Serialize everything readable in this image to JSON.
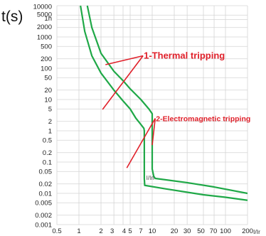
{
  "chart_data": {
    "type": "line",
    "ylabel": "t(s)",
    "xlabel": "I/Ir",
    "x_scale": "log",
    "y_scale": "log",
    "xlim": [
      0.5,
      200
    ],
    "ylim": [
      0.001,
      10000
    ],
    "grid": true,
    "x_tick_labels": [
      "0.5",
      "1",
      "2",
      "3",
      "4",
      "5",
      "7",
      "10",
      "20",
      "30",
      "50",
      "70",
      "100",
      "200"
    ],
    "y_tick_labels": [
      "10000",
      "5000",
      "1h",
      "2000",
      "1000",
      "500",
      "200",
      "100",
      "50",
      "20",
      "10",
      "5",
      "2",
      "1",
      "0.5",
      "0.2",
      "0.1",
      "0.05",
      "0.02",
      "0.01",
      "0.005",
      "0.002",
      "0.001"
    ],
    "curve_label": "I/In",
    "line_color": "#1fa847",
    "annotation_color": "#e0202a",
    "annotations": [
      {
        "text": "1-Thermal tripping",
        "anchor": [
          7.5,
          250
        ],
        "targets": [
          [
            2.3,
            130
          ],
          [
            2.1,
            4.8
          ]
        ]
      },
      {
        "text": "2-Electromagnetic tripping",
        "anchor": [
          11,
          2.5
        ],
        "targets": [
          [
            10,
            0.35
          ],
          [
            4.5,
            0.065
          ]
        ]
      }
    ],
    "series": [
      {
        "points": [
          [
            1.05,
            10000
          ],
          [
            1.2,
            1500
          ],
          [
            1.5,
            250
          ],
          [
            2,
            70
          ],
          [
            3,
            20
          ],
          [
            4,
            9
          ],
          [
            5,
            5
          ],
          [
            6,
            2.5
          ],
          [
            7,
            1.6
          ],
          [
            7.7,
            1.2
          ],
          [
            7.8,
            1
          ],
          [
            7.8,
            0.03
          ],
          [
            7.9,
            0.018
          ],
          [
            15,
            0.014
          ],
          [
            50,
            0.009
          ],
          [
            100,
            0.0075
          ],
          [
            200,
            0.006
          ]
        ]
      },
      {
        "points": [
          [
            1.3,
            10000
          ],
          [
            1.5,
            2000
          ],
          [
            2,
            300
          ],
          [
            3,
            80
          ],
          [
            4,
            40
          ],
          [
            5,
            22
          ],
          [
            7,
            10
          ],
          [
            9,
            5
          ],
          [
            10,
            3.5
          ],
          [
            10,
            0.06
          ],
          [
            10.5,
            0.035
          ],
          [
            11,
            0.03
          ],
          [
            30,
            0.022
          ],
          [
            70,
            0.016
          ],
          [
            200,
            0.01
          ]
        ]
      }
    ]
  }
}
